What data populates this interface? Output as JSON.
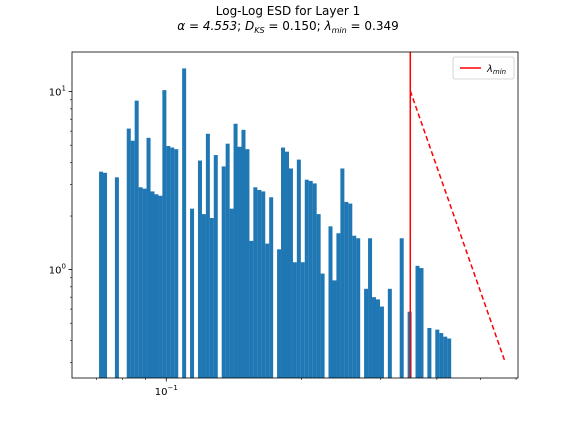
{
  "chart_data": {
    "type": "bar",
    "title": "Log-Log ESD for Layer 1",
    "subtitle": {
      "alpha": "α = 4.553",
      "dks": "D",
      "dks_sub": "KS",
      "dks_val": " = 0.150",
      "lam": "λ",
      "lam_sub": "min",
      "lam_val": " = 0.349",
      "sep": "; "
    },
    "xscale": "log",
    "yscale": "log",
    "xlim": [
      0.0617,
      0.606
    ],
    "ylim": [
      0.246,
      16.7
    ],
    "yticks": [
      {
        "value": 1,
        "base": "10",
        "exp": "0"
      },
      {
        "value": 10,
        "base": "10",
        "exp": "1"
      }
    ],
    "xticks": [
      {
        "value": 0.1,
        "base": "10",
        "exp": "−1"
      }
    ],
    "bin_width_log10": 0.0088,
    "bars_start_log10": -1.1495,
    "values": [
      3.55,
      3.5,
      0,
      0,
      3.3,
      0,
      0,
      6.2,
      5.3,
      8.9,
      2.9,
      2.85,
      5.5,
      2.75,
      2.65,
      2.6,
      10.2,
      4.95,
      4.85,
      4.75,
      0,
      13.5,
      0,
      2.2,
      0,
      4.1,
      2.05,
      5.8,
      1.95,
      4.4,
      0,
      3.8,
      5.1,
      2.2,
      6.6,
      4.9,
      6.1,
      4.75,
      1.45,
      2.9,
      2.8,
      2.75,
      1.4,
      2.55,
      0,
      1.3,
      4.85,
      4.6,
      3.7,
      1.1,
      4.15,
      1.1,
      3.2,
      3.15,
      3.05,
      2.05,
      0.95,
      0,
      1.75,
      0.87,
      1.6,
      3.7,
      2.4,
      2.35,
      1.55,
      1.5,
      0,
      0.78,
      1.5,
      0.7,
      0.68,
      0.62,
      0,
      0.78,
      0,
      0,
      1.5,
      0,
      0.58,
      0,
      1.05,
      1.02,
      0,
      0.47,
      0,
      0.46,
      0.44,
      0.42,
      0.41
    ],
    "bar_color": "#1f77b4",
    "vline": {
      "x": 0.349,
      "color": "#ff0000",
      "label": "λ",
      "label_sub": "min"
    },
    "fit_line": {
      "x": [
        0.349,
        0.568
      ],
      "y": [
        10.1,
        0.3
      ],
      "color": "#ff0000",
      "style": "dashed"
    },
    "legend": {
      "placement": "top-right"
    },
    "grid": false
  }
}
